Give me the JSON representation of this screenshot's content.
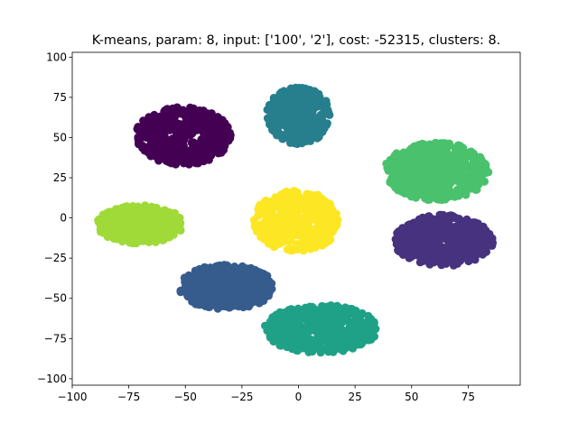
{
  "chart_data": {
    "type": "scatter",
    "title": "K-means, param: 8, input: ['100', '2'], cost: -52315, clusters: 8.",
    "xlabel": "",
    "ylabel": "",
    "xlim": [
      -100,
      98
    ],
    "ylim": [
      -104,
      103
    ],
    "xticks": [
      -100,
      -75,
      -50,
      -25,
      0,
      25,
      50,
      75
    ],
    "xtick_labels": [
      "−100",
      "−75",
      "−50",
      "−25",
      "0",
      "25",
      "50",
      "75"
    ],
    "yticks": [
      -100,
      -75,
      -50,
      -25,
      0,
      25,
      50,
      75,
      100
    ],
    "ytick_labels": [
      "−100",
      "−75",
      "−50",
      "−25",
      "0",
      "25",
      "50",
      "75",
      "100"
    ],
    "grid": false,
    "legend": false,
    "clusters": [
      {
        "id": 0,
        "color": "#440154",
        "center": [
          -51,
          51
        ],
        "spread": [
          21,
          18
        ],
        "points": 520
      },
      {
        "id": 1,
        "color": "#46327e",
        "center": [
          64,
          -14
        ],
        "spread": [
          22,
          16
        ],
        "points": 460
      },
      {
        "id": 2,
        "color": "#365c8d",
        "center": [
          -32,
          -43
        ],
        "spread": [
          21,
          14
        ],
        "points": 460
      },
      {
        "id": 3,
        "color": "#277f8e",
        "center": [
          0,
          64
        ],
        "spread": [
          14,
          18
        ],
        "points": 420
      },
      {
        "id": 4,
        "color": "#1fa187",
        "center": [
          10,
          -69
        ],
        "spread": [
          25,
          15
        ],
        "points": 520
      },
      {
        "id": 5,
        "color": "#4ac16d",
        "center": [
          61,
          29
        ],
        "spread": [
          23,
          18
        ],
        "points": 520
      },
      {
        "id": 6,
        "color": "#a0da39",
        "center": [
          -70,
          -4
        ],
        "spread": [
          19,
          12
        ],
        "points": 420
      },
      {
        "id": 7,
        "color": "#fde725",
        "center": [
          -1,
          -2
        ],
        "spread": [
          19,
          19
        ],
        "points": 460
      }
    ]
  }
}
